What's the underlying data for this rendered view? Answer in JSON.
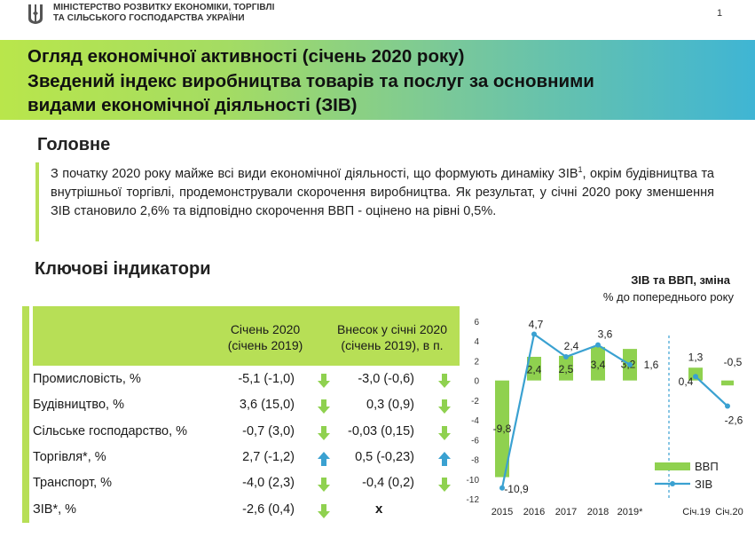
{
  "header": {
    "ministry_line1": "МІНІСТЕРСТВО РОЗВИТКУ ЕКОНОМІКИ, ТОРГІВЛІ",
    "ministry_line2": "ТА СІЛЬСЬКОГО ГОСПОДАРСТВА УКРАЇНИ",
    "page_number": "1"
  },
  "title": {
    "line1": "Огляд економічної активності (січень 2020 року)",
    "line2": "Зведений індекс виробництва товарів та послуг за основними",
    "line3": "видами економічної діяльності (ЗІВ)"
  },
  "main": {
    "heading": "Головне",
    "summary_part1": "З початку 2020 року майже всі види економічної діяльності, що формують динаміку ЗІВ",
    "summary_sup": "1",
    "summary_part2": ", окрім будівництва та внутрішньої торгівлі, продемонстрували скорочення виробництва. Як результат, у січні 2020 року зменшення ЗІВ становило 2,6% та відповідно скорочення ВВП - оцінено на рівні 0,5%."
  },
  "indicators": {
    "heading": "Ключові індикатори",
    "col1_line1": "Січень 2020",
    "col1_line2": "(січень 2019)",
    "col2_line1": "Внесок у січні 2020",
    "col2_line2": "(січень 2019), в п.",
    "rows": [
      {
        "label": "Промисловість, %",
        "v1": "-5,1 (-1,0)",
        "a1": "down",
        "v2": "-3,0 (-0,6)",
        "a2": "down"
      },
      {
        "label": "Будівництво, %",
        "v1": "3,6 (15,0)",
        "a1": "down",
        "v2": "0,3 (0,9)",
        "a2": "down"
      },
      {
        "label": "Сільське господарство, %",
        "v1": "-0,7 (3,0)",
        "a1": "down",
        "v2": "-0,03 (0,15)",
        "a2": "down"
      },
      {
        "label": "Торгівля*, %",
        "v1": "2,7 (-1,2)",
        "a1": "up",
        "v2": "0,5 (-0,23)",
        "a2": "up"
      },
      {
        "label": "Транспорт, %",
        "v1": "-4,0 (2,3)",
        "a1": "down",
        "v2": "-0,4 (0,2)",
        "a2": "down"
      },
      {
        "label": "ЗІВ*, %",
        "v1": "-2,6 (0,4)",
        "a1": "down",
        "v2": "",
        "a2": "none",
        "mark": "x"
      }
    ]
  },
  "chart_data": {
    "type": "bar",
    "title": "ЗІВ та ВВП, зміна",
    "subtitle": "% до попереднього року",
    "categories": [
      "2015",
      "2016",
      "2017",
      "2018",
      "2019*",
      "Січ.19",
      "Січ.20"
    ],
    "ylim": [
      -12,
      6
    ],
    "yticks": [
      "6",
      "4",
      "2",
      "0",
      "-2",
      "-4",
      "-6",
      "-8",
      "-10",
      "-12"
    ],
    "series": [
      {
        "name": "ВВП",
        "type": "bar",
        "color": "#8fd14f",
        "values": [
          -9.8,
          2.4,
          2.5,
          3.4,
          3.2,
          1.3,
          -0.5
        ],
        "labels": [
          "-9,8",
          "2,4",
          "2,5",
          "3,4",
          "3,2",
          "1,3",
          "-0,5"
        ]
      },
      {
        "name": "ЗІВ",
        "type": "line",
        "color": "#3aa1d1",
        "values": [
          -10.9,
          4.7,
          2.4,
          3.6,
          1.6,
          0.4,
          -2.6
        ],
        "labels": [
          "-10,9",
          "4,7",
          "2,4",
          "3,6",
          "1,6",
          "0,4",
          "-2,6"
        ]
      }
    ],
    "legend": "bottom-right",
    "grid": false
  }
}
